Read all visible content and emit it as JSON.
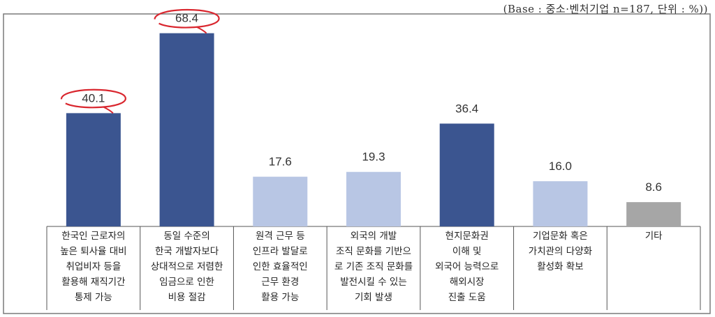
{
  "base_note": "(Base : 중소·벤처기업 n=187, 단위 : %))",
  "colors": {
    "dark": "#3b5590",
    "light": "#b8c6e4",
    "gray": "#a6a6a6",
    "highlight": "#d9262e",
    "frame": "#7a7a7a"
  },
  "chart_data": {
    "type": "bar",
    "categories": [
      [
        "한국인 근로자의",
        "높은 퇴사율 대비",
        "취업비자 등을",
        "활용해 재직기간",
        "통제 가능"
      ],
      [
        "동일 수준의",
        "한국 개발자보다",
        "상대적으로 저렴한",
        "임금으로 인한",
        "비용 절감"
      ],
      [
        "원격 근무 등",
        "인프라 발달로",
        "인한 효율적인",
        "근무 환경",
        "활용 가능"
      ],
      [
        "외국의 개발",
        "조직 문화를 기반으",
        "로 기존 조직 문화를",
        "발전시킬 수 있는",
        "기회 발생"
      ],
      [
        "현지문화권",
        "이해  및",
        "외국어 능력으로",
        "해외시장",
        "진출 도움"
      ],
      [
        "기업문화 혹은",
        "가치관의 다양화",
        "활성화 확보"
      ],
      [
        "기타"
      ]
    ],
    "values": [
      40.1,
      68.4,
      17.6,
      19.3,
      36.4,
      16.0,
      8.6
    ],
    "value_labels": [
      "40.1",
      "68.4",
      "17.6",
      "19.3",
      "36.4",
      "16.0",
      "8.6"
    ],
    "bar_colors": [
      "dark",
      "dark",
      "light",
      "light",
      "dark",
      "light",
      "gray"
    ],
    "highlighted": [
      0,
      1
    ],
    "ylim": [
      0,
      73
    ]
  }
}
